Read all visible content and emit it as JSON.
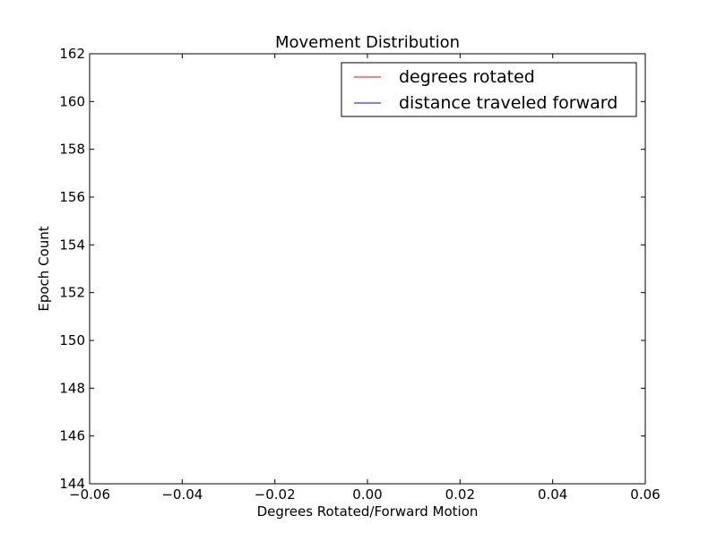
{
  "chart_data": {
    "type": "line",
    "title": "Movement Distribution",
    "xlabel": "Degrees Rotated/Forward Motion",
    "ylabel": "Epoch Count",
    "xlim": [
      -0.06,
      0.06
    ],
    "ylim": [
      144,
      162
    ],
    "xticks": [
      -0.06,
      -0.04,
      -0.02,
      0.0,
      0.02,
      0.04,
      0.06
    ],
    "xtick_labels": [
      "−0.06",
      "−0.04",
      "−0.02",
      "0.00",
      "0.02",
      "0.04",
      "0.06"
    ],
    "yticks": [
      144,
      146,
      148,
      150,
      152,
      154,
      156,
      158,
      160,
      162
    ],
    "ytick_labels": [
      "144",
      "146",
      "148",
      "150",
      "152",
      "154",
      "156",
      "158",
      "160",
      "162"
    ],
    "grid": false,
    "legend_position": "upper right",
    "series": [
      {
        "name": "degrees rotated",
        "color": "#ff0000",
        "x": [],
        "y": []
      },
      {
        "name": "distance traveled forward",
        "color": "#0000ff",
        "x": [],
        "y": []
      }
    ]
  }
}
